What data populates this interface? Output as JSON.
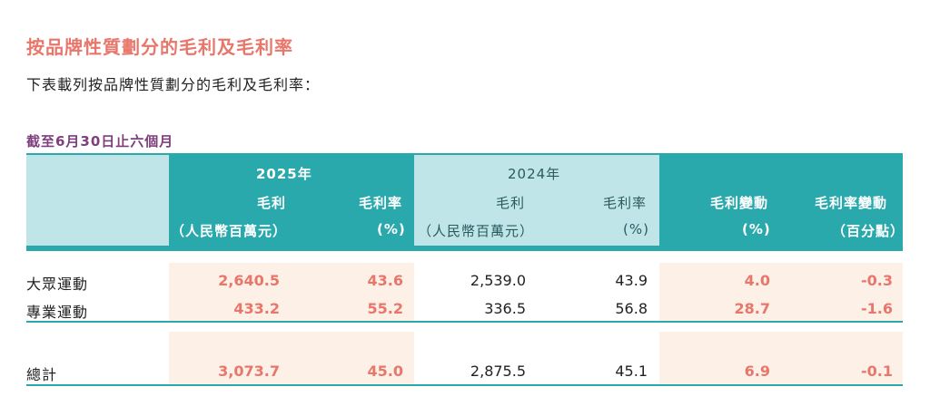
{
  "title": "按品牌性質劃分的毛利及毛利率",
  "intro": "下表載列按品牌性質劃分的毛利及毛利率：",
  "period": "截至6月30日止六個月",
  "header": {
    "year_2025": "2025年",
    "year_2024": "2024年",
    "gross_profit": "毛利",
    "gross_margin": "毛利率",
    "rmb_million": "（人民幣百萬元）",
    "rmb_million_2024": "（人民幣百萬元）",
    "percent": "(%)",
    "percent_2024": "(%)",
    "gp_change": "毛利變動",
    "gm_change": "毛利率變動",
    "gp_change_unit": "(%)",
    "gm_change_unit": "（百分點）"
  },
  "rows": [
    {
      "label": "大眾運動",
      "gp_2025": "2,640.5",
      "gm_2025": "43.6",
      "gp_2024": "2,539.0",
      "gm_2024": "43.9",
      "gp_change": "4.0",
      "gm_change": "-0.3"
    },
    {
      "label": "專業運動",
      "gp_2025": "433.2",
      "gm_2025": "55.2",
      "gp_2024": "336.5",
      "gm_2024": "56.8",
      "gp_change": "28.7",
      "gm_change": "-1.6"
    },
    {
      "label": "總計",
      "gp_2025": "3,073.7",
      "gm_2025": "45.0",
      "gp_2024": "2,875.5",
      "gm_2024": "45.1",
      "gp_change": "6.9",
      "gm_change": "-0.1"
    }
  ],
  "colors": {
    "title": "#e8766b",
    "period": "#7d3f7d",
    "teal": "#2aa9ad",
    "light_teal": "#bfe5e8",
    "peach": "#fdf0e7",
    "highlight_number": "#e8766b"
  }
}
